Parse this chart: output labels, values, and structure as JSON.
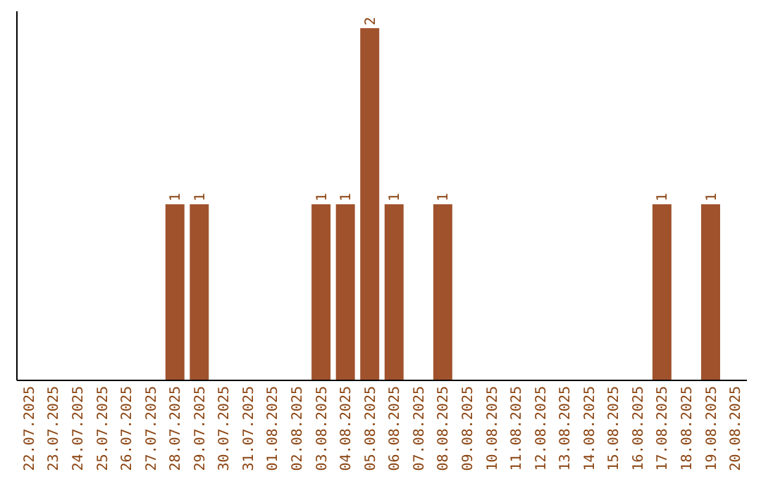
{
  "chart_data": {
    "type": "bar",
    "categories": [
      "22.07.2025",
      "23.07.2025",
      "24.07.2025",
      "25.07.2025",
      "26.07.2025",
      "27.07.2025",
      "28.07.2025",
      "29.07.2025",
      "30.07.2025",
      "31.07.2025",
      "01.08.2025",
      "02.08.2025",
      "03.08.2025",
      "04.08.2025",
      "05.08.2025",
      "06.08.2025",
      "07.08.2025",
      "08.08.2025",
      "09.08.2025",
      "10.08.2025",
      "11.08.2025",
      "12.08.2025",
      "13.08.2025",
      "14.08.2025",
      "15.08.2025",
      "16.08.2025",
      "17.08.2025",
      "18.08.2025",
      "19.08.2025",
      "20.08.2025"
    ],
    "values": [
      0,
      0,
      0,
      0,
      0,
      0,
      1,
      1,
      0,
      0,
      0,
      0,
      1,
      1,
      2,
      1,
      0,
      1,
      0,
      0,
      0,
      0,
      0,
      0,
      0,
      0,
      1,
      0,
      1,
      0
    ],
    "value_labels": [
      null,
      null,
      null,
      null,
      null,
      null,
      "1",
      "1",
      null,
      null,
      null,
      null,
      "1",
      "1",
      "2",
      "1",
      null,
      "1",
      null,
      null,
      null,
      null,
      null,
      null,
      null,
      null,
      "1",
      null,
      "1",
      null
    ],
    "color": "#a0522d",
    "tick_labels": "x"
  }
}
